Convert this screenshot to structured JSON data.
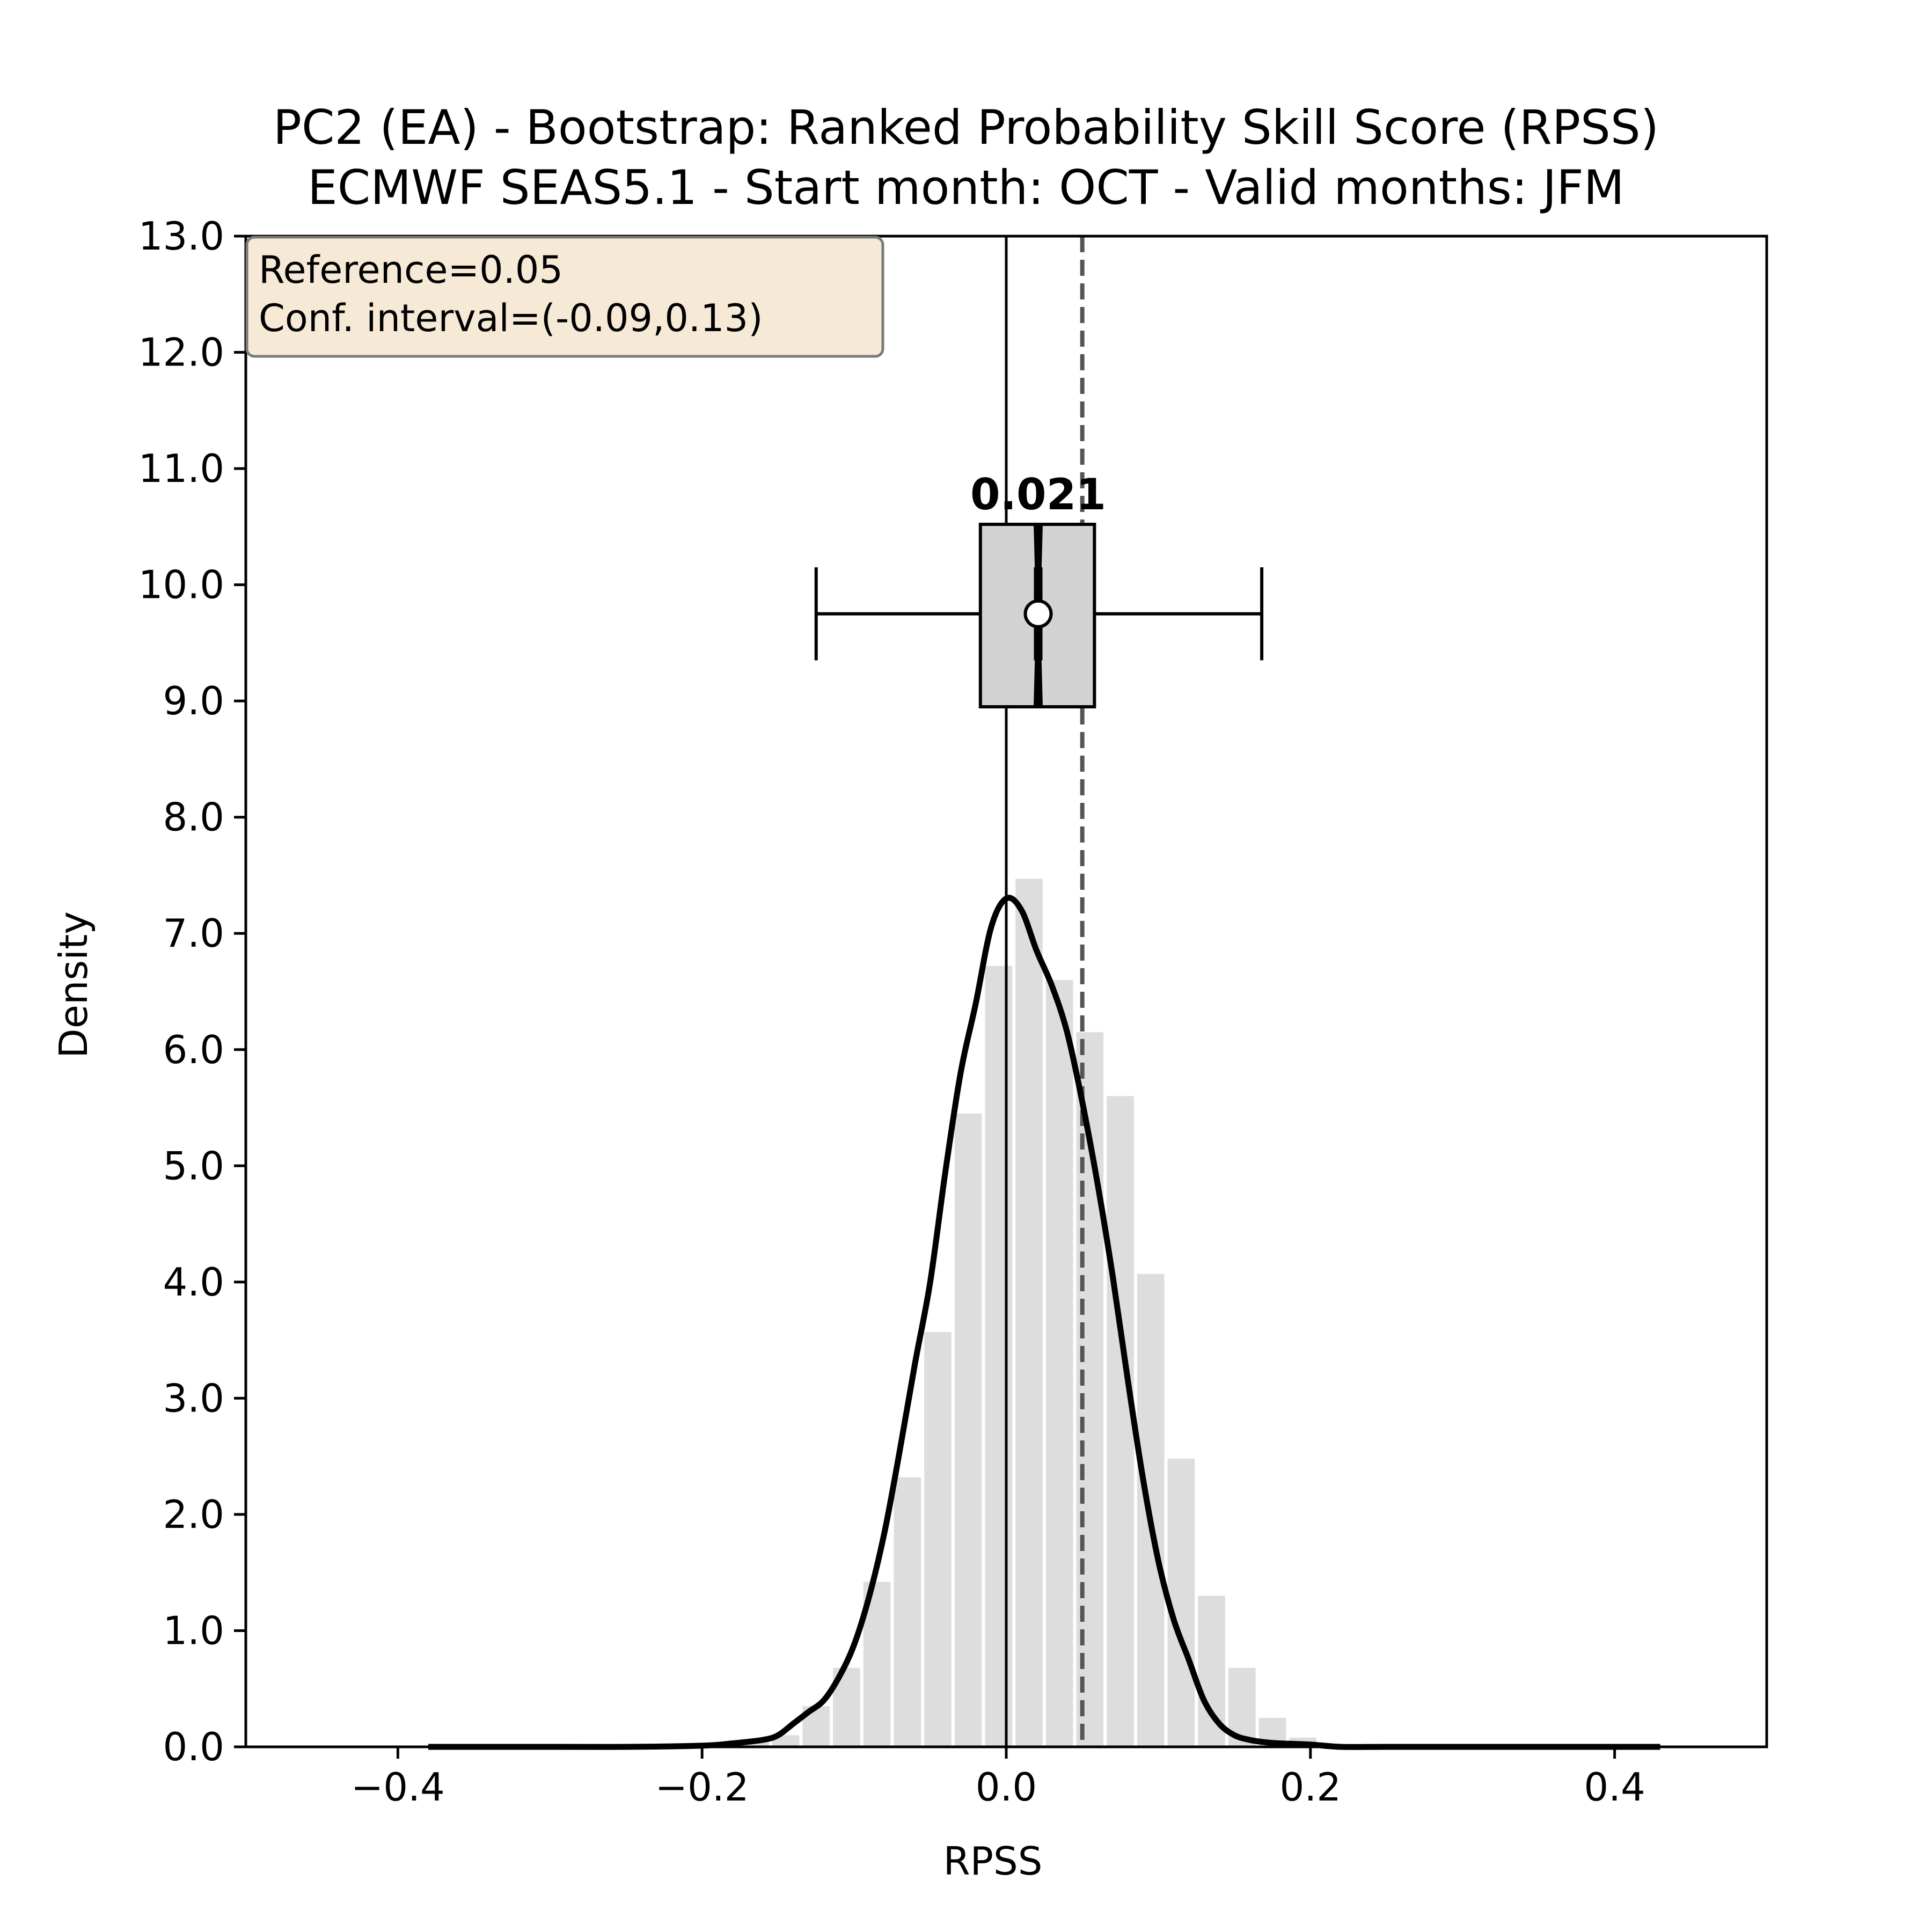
{
  "chart_data": {
    "type": "histogram",
    "title": "PC2 (EA) - Bootstrap: Ranked Probability Skill Score (RPSS)",
    "subtitle": "ECMWF SEAS5.1 - Start month: OCT - Valid months: JFM",
    "xlabel": "RPSS",
    "ylabel": "Density",
    "xlim": [
      -0.5,
      0.5
    ],
    "ylim": [
      0,
      13
    ],
    "xticks": [
      -0.4,
      -0.2,
      0.0,
      0.2,
      0.4
    ],
    "xtick_labels": [
      "−0.4",
      "−0.2",
      "0.0",
      "0.2",
      "0.4"
    ],
    "yticks": [
      0,
      1,
      2,
      3,
      4,
      5,
      6,
      7,
      8,
      9,
      10,
      11,
      12,
      13
    ],
    "ytick_labels": [
      "0.0",
      "1.0",
      "2.0",
      "3.0",
      "4.0",
      "5.0",
      "6.0",
      "7.0",
      "8.0",
      "9.0",
      "10.0",
      "11.0",
      "12.0",
      "13.0"
    ],
    "grid": false,
    "histogram": {
      "bins": [
        {
          "x0": -0.175,
          "x1": -0.155,
          "density": 0.05
        },
        {
          "x0": -0.155,
          "x1": -0.135,
          "density": 0.1
        },
        {
          "x0": -0.135,
          "x1": -0.115,
          "density": 0.35
        },
        {
          "x0": -0.115,
          "x1": -0.095,
          "density": 0.68
        },
        {
          "x0": -0.095,
          "x1": -0.075,
          "density": 1.42
        },
        {
          "x0": -0.075,
          "x1": -0.055,
          "density": 2.32
        },
        {
          "x0": -0.055,
          "x1": -0.035,
          "density": 3.57
        },
        {
          "x0": -0.035,
          "x1": -0.015,
          "density": 5.45
        },
        {
          "x0": -0.015,
          "x1": 0.005,
          "density": 6.72
        },
        {
          "x0": 0.005,
          "x1": 0.025,
          "density": 7.47
        },
        {
          "x0": 0.025,
          "x1": 0.045,
          "density": 6.6
        },
        {
          "x0": 0.045,
          "x1": 0.065,
          "density": 6.15
        },
        {
          "x0": 0.065,
          "x1": 0.085,
          "density": 5.6
        },
        {
          "x0": 0.085,
          "x1": 0.105,
          "density": 4.07
        },
        {
          "x0": 0.105,
          "x1": 0.125,
          "density": 2.48
        },
        {
          "x0": 0.125,
          "x1": 0.145,
          "density": 1.3
        },
        {
          "x0": 0.145,
          "x1": 0.165,
          "density": 0.68
        },
        {
          "x0": 0.165,
          "x1": 0.185,
          "density": 0.25
        },
        {
          "x0": 0.185,
          "x1": 0.205,
          "density": 0.08
        }
      ]
    },
    "kde": {
      "x": [
        -0.38,
        -0.3,
        -0.25,
        -0.2,
        -0.18,
        -0.16,
        -0.15,
        -0.14,
        -0.13,
        -0.12,
        -0.11,
        -0.1,
        -0.09,
        -0.08,
        -0.07,
        -0.06,
        -0.05,
        -0.04,
        -0.03,
        -0.02,
        -0.01,
        0.0,
        0.01,
        0.02,
        0.03,
        0.04,
        0.05,
        0.06,
        0.07,
        0.08,
        0.09,
        0.1,
        0.11,
        0.12,
        0.13,
        0.14,
        0.15,
        0.16,
        0.17,
        0.18,
        0.2,
        0.22,
        0.25,
        0.3,
        0.35,
        0.43
      ],
      "y": [
        0.0,
        0.0,
        0.0,
        0.01,
        0.03,
        0.06,
        0.1,
        0.2,
        0.3,
        0.4,
        0.6,
        0.88,
        1.3,
        1.85,
        2.55,
        3.3,
        4.0,
        4.95,
        5.8,
        6.4,
        7.05,
        7.3,
        7.2,
        6.85,
        6.55,
        6.15,
        5.55,
        4.85,
        4.05,
        3.15,
        2.3,
        1.6,
        1.1,
        0.75,
        0.4,
        0.2,
        0.1,
        0.06,
        0.04,
        0.03,
        0.02,
        0.0,
        0.0,
        0.0,
        0.0,
        0.0
      ]
    },
    "reference_line": {
      "x": 0.05,
      "label": "Reference=0.05"
    },
    "zero_line": {
      "x": 0.0
    },
    "boxplot": {
      "y_center": 9.75,
      "whisker_low": -0.125,
      "q1": -0.017,
      "median": 0.021,
      "q3": 0.058,
      "whisker_high": 0.168,
      "mean_marker": 0.021,
      "notch_low": 0.018,
      "notch_high": 0.024,
      "box_y": [
        8.95,
        10.52
      ],
      "whisker_cap_y": [
        9.35,
        10.15
      ],
      "median_label": "0.021"
    },
    "info_box": {
      "lines": [
        "Reference=0.05",
        "Conf. interval=(-0.09,0.13)"
      ]
    },
    "colors": {
      "histogram": "#dddddd",
      "kde": "#000000",
      "box_fill": "#d3d3d3",
      "reference_line": "#555555",
      "info_box_fill": "#f6e9d6",
      "info_box_edge": "#7a7a7a"
    }
  }
}
